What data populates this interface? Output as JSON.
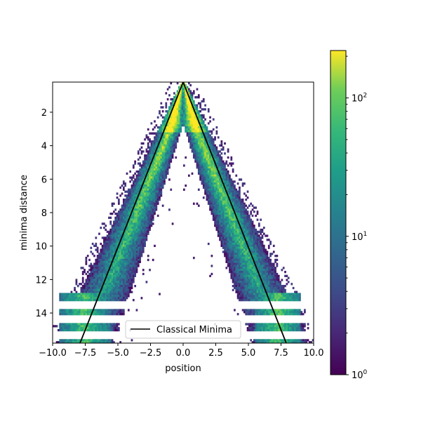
{
  "chart_data": {
    "type": "heatmap",
    "xlabel": "position",
    "ylabel": "minima distance",
    "xlim": [
      -10,
      10
    ],
    "ylim": [
      0.2,
      15.8
    ],
    "y_inverted": true,
    "x_ticks": [
      -10,
      -7.5,
      -5,
      -2.5,
      0,
      2.5,
      5,
      7.5,
      10
    ],
    "x_tick_labels": [
      "−10.0",
      "−7.5",
      "−5.0",
      "−2.5",
      "0.0",
      "2.5",
      "5.0",
      "7.5",
      "10.0"
    ],
    "y_ticks": [
      2,
      4,
      6,
      8,
      10,
      12,
      14
    ],
    "y_tick_labels": [
      "2",
      "4",
      "6",
      "8",
      "10",
      "12",
      "14"
    ],
    "colormap": "viridis",
    "color_scale": "log",
    "colorbar_range": [
      1,
      220
    ],
    "colorbar_ticks": [
      {
        "value": 1,
        "base": "10",
        "exp": "0"
      },
      {
        "value": 10,
        "base": "10",
        "exp": "1"
      },
      {
        "value": 100,
        "base": "10",
        "exp": "2"
      }
    ],
    "density_description": {
      "apex": {
        "x": 0,
        "y": 0.2
      },
      "outer_edge_slope": 0.62,
      "inner_edge_slope": 0.4,
      "left_bottom_bands_x": [
        -9.5,
        -5.5
      ],
      "right_bottom_bands_x": [
        5.5,
        9.0
      ],
      "bands_start_y": 12.8
    },
    "series": [
      {
        "name": "Classical Minima",
        "type": "line",
        "color": "#000000",
        "points": [
          {
            "x": -7.9,
            "y": 15.8
          },
          {
            "x": 0,
            "y": 0.2
          },
          {
            "x": 7.9,
            "y": 15.8
          }
        ]
      }
    ],
    "legend": {
      "location": "lower center"
    }
  }
}
